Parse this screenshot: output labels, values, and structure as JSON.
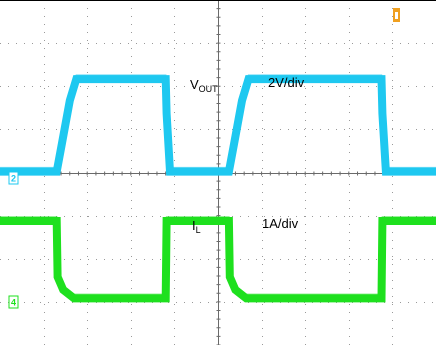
{
  "chart_data": {
    "type": "line",
    "title": "",
    "grid": true,
    "grid_divisions": {
      "x": 10,
      "y": 8
    },
    "x_range_div": [
      0,
      10
    ],
    "channels": [
      {
        "id": "2",
        "marker": "2",
        "name_main": "V",
        "name_sub": "OUT",
        "scale": "2V/div",
        "color": "#1ec8f0",
        "waveform": {
          "x_div": [
            0,
            1.3,
            1.42,
            1.6,
            1.75,
            3.8,
            3.82,
            3.9,
            5.25,
            5.37,
            5.55,
            5.7,
            8.75,
            8.77,
            8.85,
            10
          ],
          "y_div": [
            0.15,
            0.15,
            0.8,
            1.8,
            2.3,
            2.3,
            1.5,
            0.15,
            0.15,
            0.8,
            1.8,
            2.3,
            2.3,
            1.5,
            0.15,
            0.15
          ]
        }
      },
      {
        "id": "4",
        "marker": "4",
        "name_main": "I",
        "name_sub": "L",
        "scale": "1A/div",
        "color": "#1ee01e",
        "waveform": {
          "x_div": [
            0,
            1.3,
            1.32,
            1.45,
            1.7,
            3.8,
            3.82,
            5.25,
            5.27,
            5.4,
            5.65,
            8.75,
            8.77,
            10
          ],
          "y_div": [
            2.0,
            2.0,
            0.7,
            0.4,
            0.2,
            0.2,
            2.0,
            2.0,
            0.7,
            0.4,
            0.2,
            0.2,
            2.0,
            2.0
          ]
        }
      }
    ],
    "trigger_marker": {
      "color": "#f0a020"
    }
  }
}
